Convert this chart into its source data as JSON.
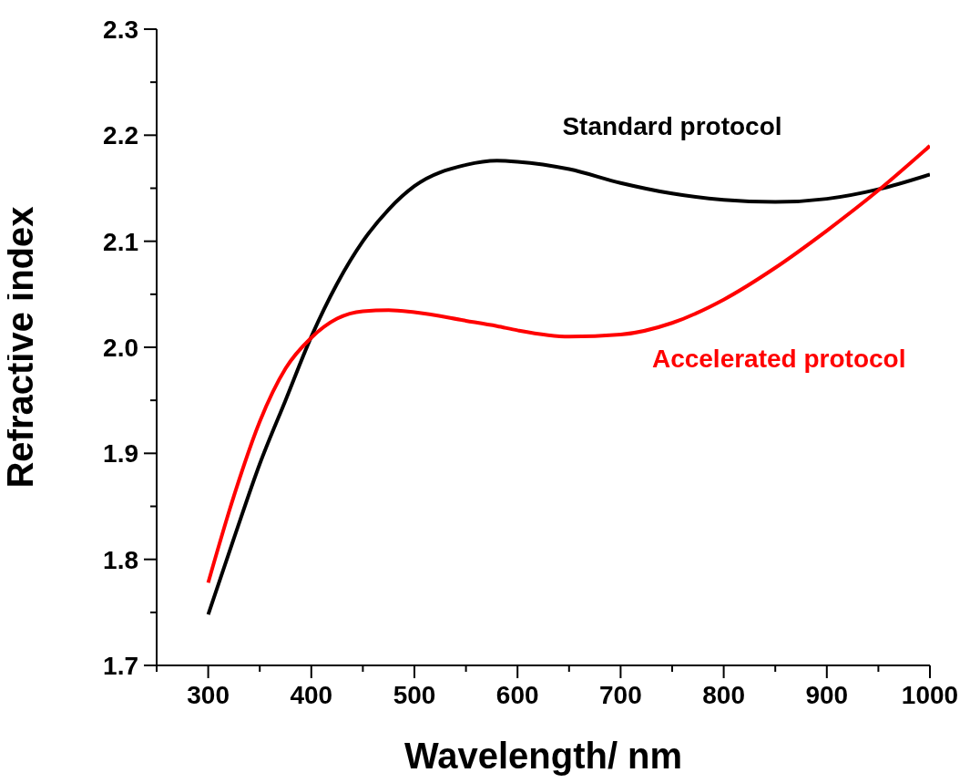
{
  "chart_data": {
    "type": "line",
    "xlabel": "Wavelength/ nm",
    "ylabel": "Refractive index",
    "x": [
      300,
      325,
      350,
      375,
      400,
      425,
      450,
      475,
      500,
      550,
      580,
      600,
      650,
      700,
      750,
      800,
      850,
      900,
      950,
      1000
    ],
    "series": [
      {
        "name": "Standard protocol",
        "color": "#000000",
        "values": [
          1.748,
          1.82,
          1.89,
          1.95,
          2.01,
          2.06,
          2.1,
          2.13,
          2.152,
          2.172,
          2.176,
          2.175,
          2.168,
          2.155,
          2.145,
          2.139,
          2.137,
          2.14,
          2.149,
          2.163
        ]
      },
      {
        "name": "Accelerated protocol",
        "color": "#ff0000",
        "values": [
          1.778,
          1.86,
          1.93,
          1.98,
          2.009,
          2.027,
          2.034,
          2.035,
          2.033,
          2.025,
          2.02,
          2.016,
          2.01,
          2.012,
          2.023,
          2.045,
          2.075,
          2.11,
          2.148,
          2.19
        ]
      }
    ],
    "xlim": [
      250,
      1000
    ],
    "xticks": [
      {
        "value": 250,
        "label": null
      },
      300,
      {
        "value": 350,
        "label": null
      },
      400,
      {
        "value": 450,
        "label": null
      },
      500,
      {
        "value": 550,
        "label": null
      },
      600,
      {
        "value": 650,
        "label": null
      },
      700,
      {
        "value": 750,
        "label": null
      },
      800,
      {
        "value": 850,
        "label": null
      },
      900,
      {
        "value": 950,
        "label": null
      },
      1000
    ],
    "ylim": [
      1.7,
      2.3
    ],
    "yticks": [
      1.7,
      {
        "value": 1.75,
        "label": null
      },
      1.8,
      {
        "value": 1.85,
        "label": null
      },
      1.9,
      {
        "value": 1.95,
        "label": null
      },
      {
        "value": 2,
        "label": "2.0"
      },
      {
        "value": 2.05,
        "label": null
      },
      2.1,
      {
        "value": 2.15,
        "label": null
      },
      2.2,
      {
        "value": 2.25,
        "label": null
      },
      2.3
    ],
    "grid": false,
    "marker": "none",
    "line_style": "solid"
  }
}
